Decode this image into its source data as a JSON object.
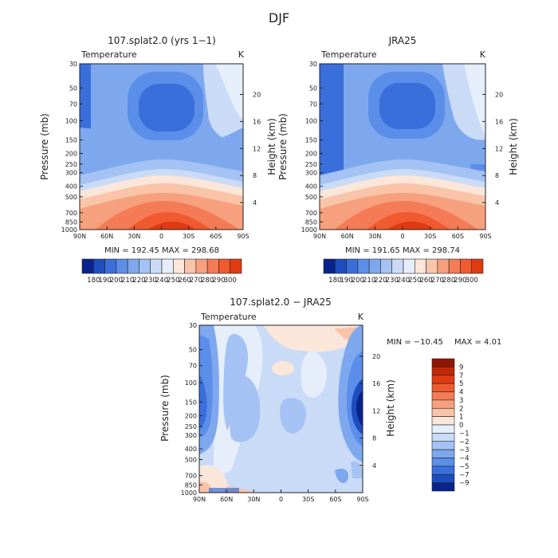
{
  "page_title": "DJF",
  "colors": {
    "cool_scale": [
      "#08238c",
      "#1d4dbf",
      "#3a6fdb",
      "#5b8ee8",
      "#7ea8ee",
      "#a4c2f3",
      "#c9dbf7",
      "#e6eefb"
    ],
    "warm_scale": [
      "#fbe6da",
      "#fac4a8",
      "#f7a07e",
      "#f47b55",
      "#f05a2e",
      "#e03a12",
      "#bf2808",
      "#8f1504"
    ]
  },
  "chart_data": [
    {
      "type": "heatmap",
      "title": "107.splat2.0 (yrs 1−1)",
      "subtitle_left": "Temperature",
      "subtitle_right": "K",
      "ylabel": "Pressure (mb)",
      "ylabel_right": "Height (km)",
      "x_ticks": [
        "90N",
        "60N",
        "30N",
        "0",
        "30S",
        "60S",
        "90S"
      ],
      "y_ticks": [
        "30",
        "50",
        "70",
        "100",
        "150",
        "200",
        "250",
        "300",
        "400",
        "500",
        "700",
        "850",
        "1000"
      ],
      "right_ticks": [
        "20",
        "16",
        "12",
        "8",
        "4"
      ],
      "stats": "MIN = 192.45   MAX = 298.68",
      "colorbar_labels": [
        "180",
        "190",
        "200",
        "210",
        "220",
        "230",
        "240",
        "250",
        "260",
        "270",
        "280",
        "290",
        "300"
      ],
      "min": 192.45,
      "max": 298.68
    },
    {
      "type": "heatmap",
      "title": "JRA25",
      "subtitle_left": "Temperature",
      "subtitle_right": "K",
      "ylabel": "Pressure (mb)",
      "ylabel_right": "Height (km)",
      "x_ticks": [
        "90N",
        "60N",
        "30N",
        "0",
        "30S",
        "60S",
        "90S"
      ],
      "y_ticks": [
        "30",
        "50",
        "70",
        "100",
        "150",
        "200",
        "250",
        "300",
        "400",
        "500",
        "700",
        "850",
        "1000"
      ],
      "right_ticks": [
        "20",
        "16",
        "12",
        "8",
        "4"
      ],
      "stats": "MIN = 191.65   MAX = 298.74",
      "colorbar_labels": [
        "180",
        "190",
        "200",
        "210",
        "220",
        "230",
        "240",
        "250",
        "260",
        "270",
        "280",
        "290",
        "300"
      ],
      "min": 191.65,
      "max": 298.74
    },
    {
      "type": "heatmap",
      "title": "107.splat2.0 − JRA25",
      "subtitle_left": "Temperature",
      "subtitle_right": "K",
      "ylabel": "Pressure (mb)",
      "ylabel_right": "Height (km)",
      "x_ticks": [
        "90N",
        "60N",
        "30N",
        "0",
        "30S",
        "60S",
        "90S"
      ],
      "y_ticks": [
        "30",
        "50",
        "70",
        "100",
        "150",
        "200",
        "250",
        "300",
        "400",
        "500",
        "700",
        "850",
        "1000"
      ],
      "right_ticks": [
        "20",
        "16",
        "12",
        "8",
        "4"
      ],
      "stats_min": "MIN = −10.45",
      "stats_max": "MAX =    4.01",
      "colorbar_labels": [
        "9",
        "7",
        "5",
        "4",
        "3",
        "2",
        "1",
        "0",
        "−1",
        "−2",
        "−3",
        "−4",
        "−5",
        "−7",
        "−9"
      ],
      "min": -10.45,
      "max": 4.01
    }
  ]
}
